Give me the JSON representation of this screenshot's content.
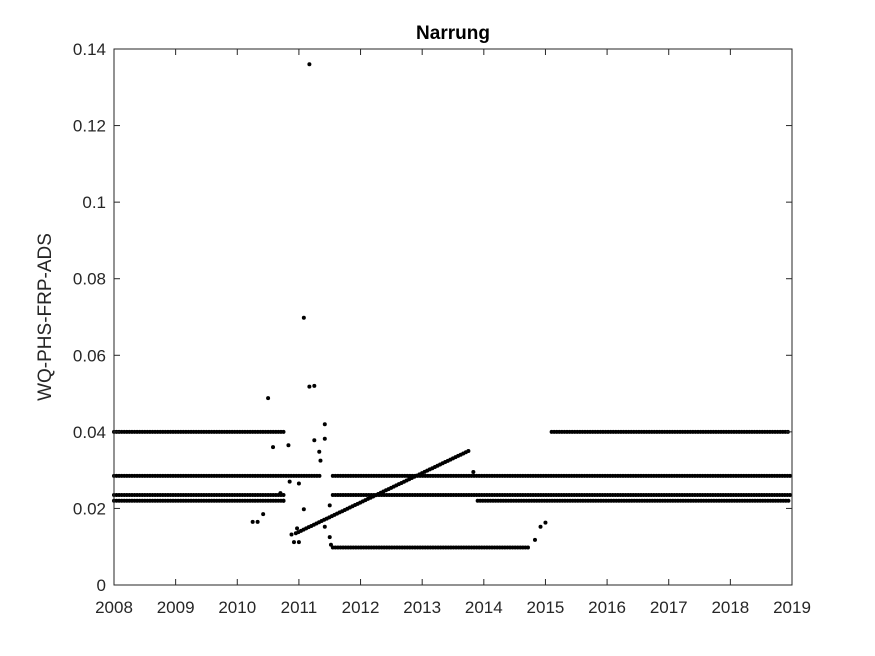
{
  "chart_data": {
    "type": "scatter",
    "title": "Narrung",
    "xlabel": "",
    "ylabel": "WQ-PHS-FRP-ADS",
    "xlim": [
      2008,
      2019
    ],
    "ylim": [
      0,
      0.14
    ],
    "xticks": [
      "2008",
      "2009",
      "2010",
      "2011",
      "2012",
      "2013",
      "2014",
      "2015",
      "2016",
      "2017",
      "2018",
      "2019"
    ],
    "yticks": [
      "0",
      "0.02",
      "0.04",
      "0.06",
      "0.08",
      "0.1",
      "0.12",
      "0.14"
    ],
    "grid": false,
    "marker_color": "#000000",
    "series": [
      {
        "values": {
          "bands": [
            {
              "y": 0.04,
              "x_start": 2008.0,
              "x_end": 2010.77
            },
            {
              "y": 0.04,
              "x_start": 2015.1,
              "x_end": 2018.97
            },
            {
              "y": 0.0285,
              "x_start": 2008.0,
              "x_end": 2011.35
            },
            {
              "y": 0.0285,
              "x_start": 2011.55,
              "x_end": 2018.97
            },
            {
              "y": 0.0235,
              "x_start": 2008.0,
              "x_end": 2010.77
            },
            {
              "y": 0.0235,
              "x_start": 2011.55,
              "x_end": 2018.97
            },
            {
              "y": 0.022,
              "x_start": 2008.0,
              "x_end": 2010.77
            },
            {
              "y": 0.022,
              "x_start": 2013.9,
              "x_end": 2018.97
            },
            {
              "y": 0.0098,
              "x_start": 2011.55,
              "x_end": 2014.75
            }
          ],
          "trend": {
            "x_start": 2010.95,
            "y_start": 0.0135,
            "x_end": 2013.75,
            "y_end": 0.035
          },
          "points": [
            [
              2010.25,
              0.0165
            ],
            [
              2010.33,
              0.0165
            ],
            [
              2010.42,
              0.0185
            ],
            [
              2010.5,
              0.0488
            ],
            [
              2010.58,
              0.036
            ],
            [
              2010.7,
              0.024
            ],
            [
              2010.75,
              0.022
            ],
            [
              2010.83,
              0.0365
            ],
            [
              2010.85,
              0.027
            ],
            [
              2010.88,
              0.0132
            ],
            [
              2010.92,
              0.0112
            ],
            [
              2010.97,
              0.0148
            ],
            [
              2011.0,
              0.0112
            ],
            [
              2011.0,
              0.0265
            ],
            [
              2011.08,
              0.0198
            ],
            [
              2011.08,
              0.0698
            ],
            [
              2011.17,
              0.136
            ],
            [
              2011.17,
              0.0518
            ],
            [
              2011.25,
              0.052
            ],
            [
              2011.25,
              0.0378
            ],
            [
              2011.33,
              0.0348
            ],
            [
              2011.35,
              0.0325
            ],
            [
              2011.42,
              0.042
            ],
            [
              2011.42,
              0.0382
            ],
            [
              2011.42,
              0.0152
            ],
            [
              2011.5,
              0.0208
            ],
            [
              2011.5,
              0.0125
            ],
            [
              2011.52,
              0.0105
            ],
            [
              2013.83,
              0.0295
            ],
            [
              2014.83,
              0.0118
            ],
            [
              2014.92,
              0.0152
            ],
            [
              2015.0,
              0.0163
            ]
          ]
        }
      }
    ]
  }
}
